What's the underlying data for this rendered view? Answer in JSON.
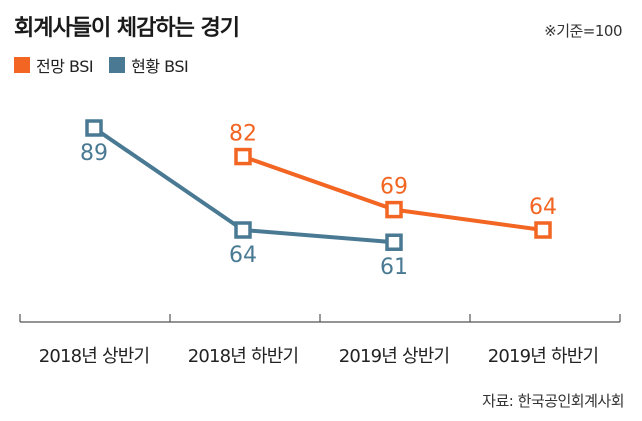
{
  "title": "회계사들이 체감하는 경기",
  "basis_note": "※기준=100",
  "source": "자료: 한국공인회계사회",
  "chart_data": {
    "type": "line",
    "title": "회계사들이 체감하는 경기",
    "categories": [
      "2018년 상반기",
      "2018년 하반기",
      "2019년 상반기",
      "2019년 하반기"
    ],
    "series": [
      {
        "name": "전망 BSI",
        "color": "#f26522",
        "values": [
          null,
          82,
          69,
          64
        ]
      },
      {
        "name": "현황 BSI",
        "color": "#4a7a93",
        "values": [
          89,
          64,
          61,
          null
        ]
      }
    ],
    "ylim": [
      50,
      95
    ],
    "grid": false,
    "legend_position": "top-left"
  }
}
